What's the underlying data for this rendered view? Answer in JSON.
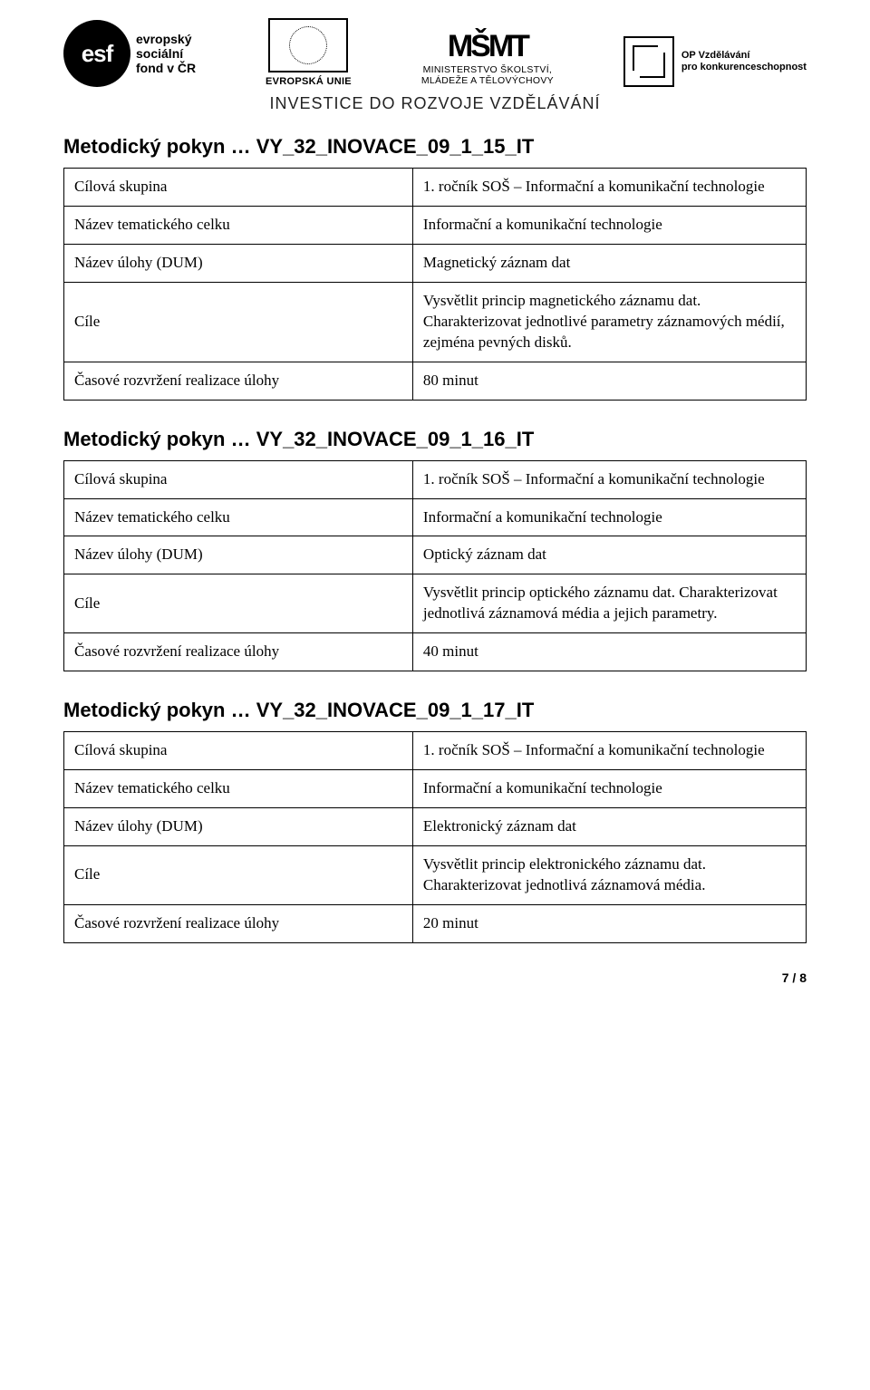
{
  "header": {
    "tagline": "INVESTICE DO ROZVOJE VZDĚLÁVÁNÍ",
    "esf_abbrev": "esf",
    "esf_lines": [
      "evropský",
      "sociální",
      "fond v ČR"
    ],
    "eu_label": "EVROPSKÁ UNIE",
    "msmt_logo": "MŠMT",
    "msmt_line1": "MINISTERSTVO ŠKOLSTVÍ,",
    "msmt_line2": "MLÁDEŽE A TĚLOVÝCHOVY",
    "op_line1": "OP Vzdělávání",
    "op_line2": "pro konkurenceschopnost"
  },
  "labels": {
    "target_group": "Cílová skupina",
    "unit_name": "Název tematického celku",
    "task_name": "Název úlohy (DUM)",
    "goals": "Cíle",
    "time": "Časové rozvržení realizace úlohy"
  },
  "common": {
    "title_prefix": "Metodický pokyn … ",
    "grade": "1. ročník SOŠ – Informační a komunikační technologie",
    "unit": "Informační a komunikační technologie"
  },
  "sections": [
    {
      "code": "VY_32_INOVACE_09_1_15_IT",
      "task": "Magnetický záznam dat",
      "goals": "Vysvětlit princip magnetického záznamu dat. Charakterizovat jednotlivé parametry záznamových médií, zejména pevných disků.",
      "time": "80 minut"
    },
    {
      "code": "VY_32_INOVACE_09_1_16_IT",
      "task": "Optický záznam dat",
      "goals": "Vysvětlit princip optického záznamu dat. Charakterizovat jednotlivá záznamová média a jejich parametry.",
      "time": "40 minut"
    },
    {
      "code": "VY_32_INOVACE_09_1_17_IT",
      "task": "Elektronický záznam dat",
      "goals": "Vysvětlit princip elektronického záznamu dat. Charakterizovat jednotlivá záznamová média.",
      "time": "20 minut"
    }
  ],
  "page_number": "7 / 8"
}
